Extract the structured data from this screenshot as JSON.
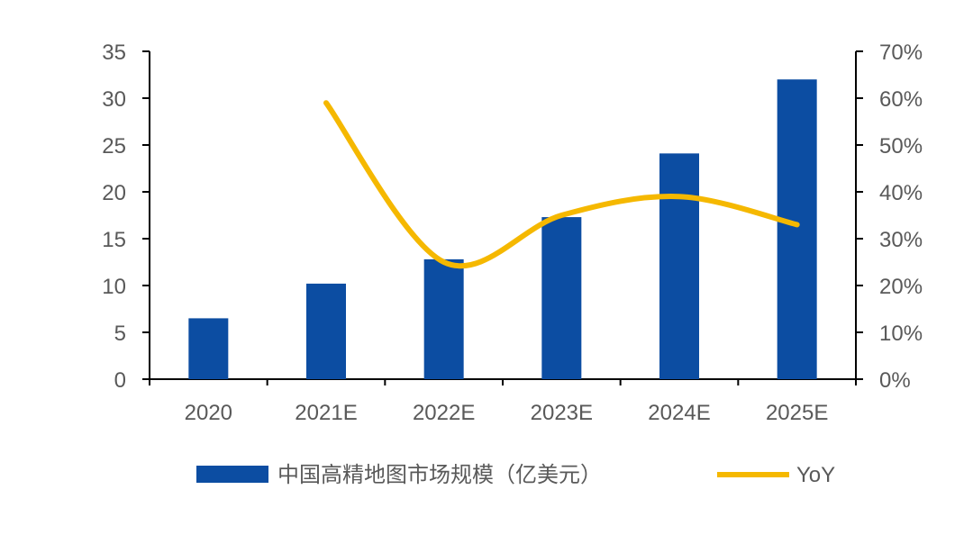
{
  "chart_data": {
    "type": "bar",
    "categories": [
      "2020",
      "2021E",
      "2022E",
      "2023E",
      "2024E",
      "2025E"
    ],
    "series": [
      {
        "name": "中国高精地图市场规模（亿美元）",
        "type": "bar",
        "axis": "left",
        "color": "#0C4DA2",
        "values": [
          6.5,
          10.2,
          12.8,
          17.3,
          24.1,
          32.0
        ]
      },
      {
        "name": "YoY",
        "type": "line",
        "axis": "right",
        "color": "#F5B800",
        "values": [
          null,
          0.59,
          0.25,
          0.35,
          0.39,
          0.33
        ]
      }
    ],
    "left_axis": {
      "ylim": [
        0,
        35
      ],
      "ticks": [
        0,
        5,
        10,
        15,
        20,
        25,
        30,
        35
      ],
      "tick_labels": [
        "0",
        "5",
        "10",
        "15",
        "20",
        "25",
        "30",
        "35"
      ]
    },
    "right_axis": {
      "ylim": [
        0,
        0.7
      ],
      "ticks": [
        0,
        0.1,
        0.2,
        0.3,
        0.4,
        0.5,
        0.6,
        0.7
      ],
      "tick_labels": [
        "0%",
        "10%",
        "20%",
        "30%",
        "40%",
        "50%",
        "60%",
        "70%"
      ]
    },
    "grid": false,
    "legend_position": "bottom",
    "title": "",
    "xlabel": "",
    "ylabel": ""
  }
}
